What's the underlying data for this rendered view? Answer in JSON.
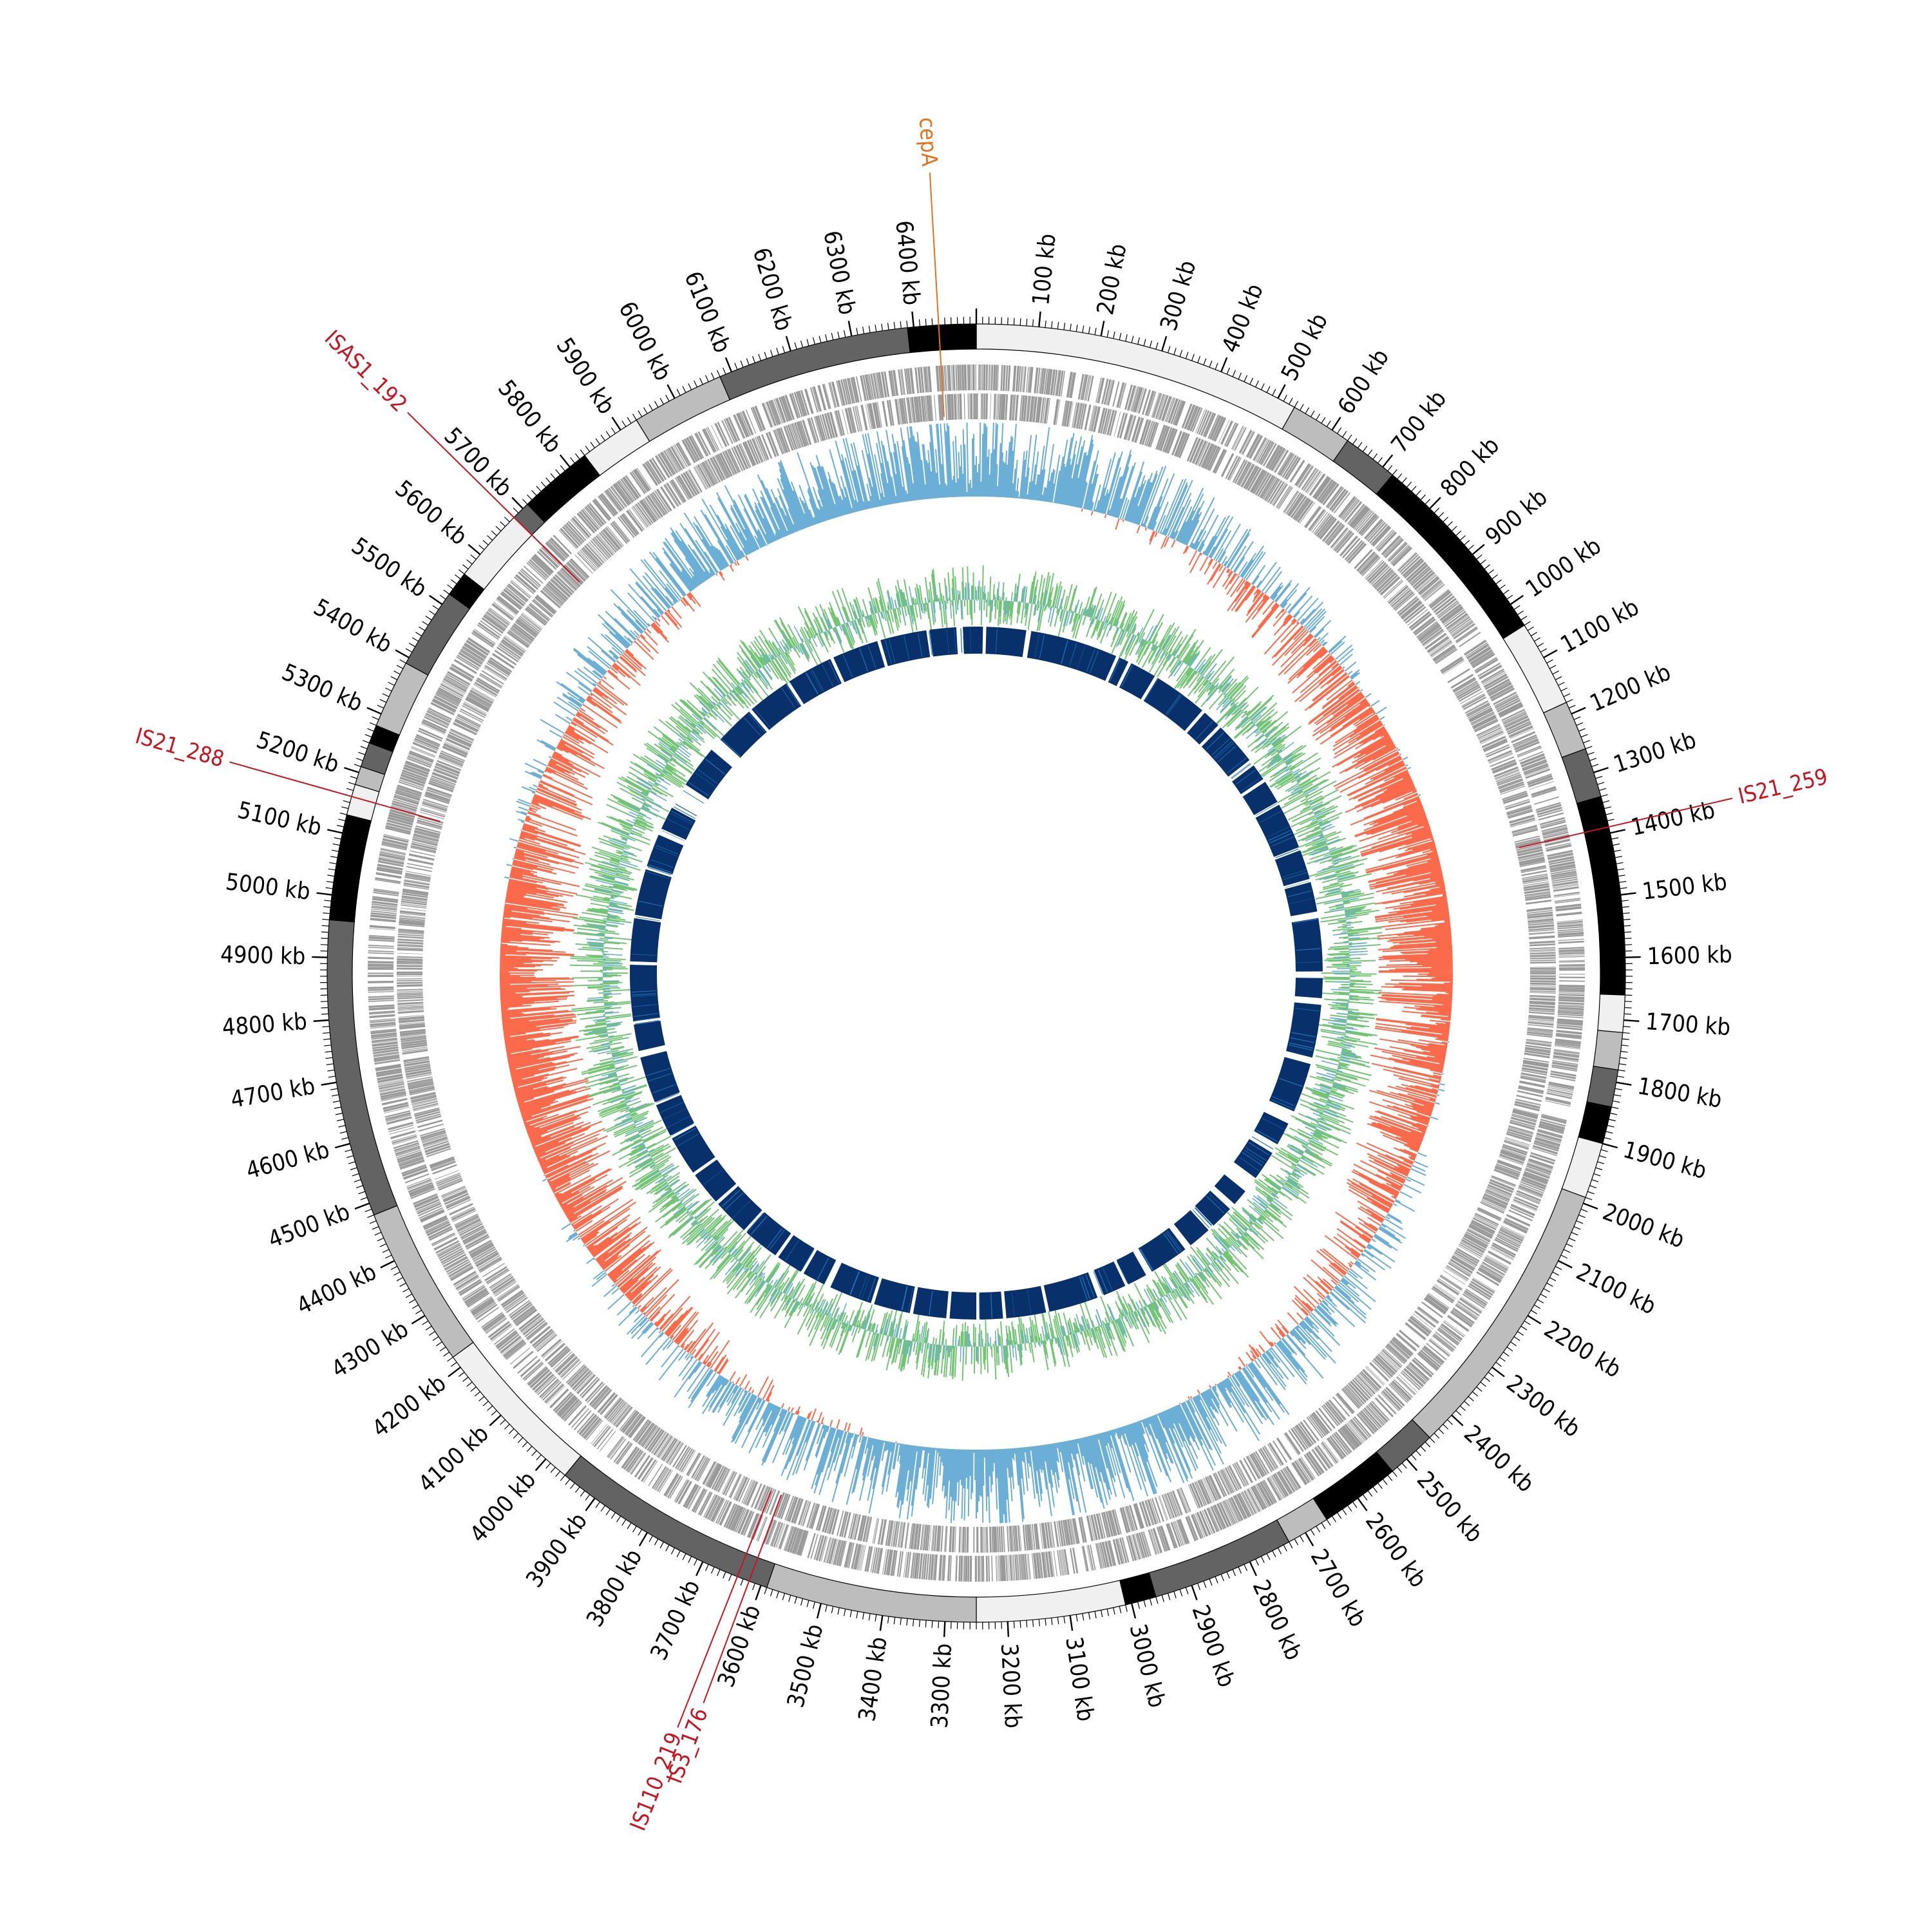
{
  "genome": {
    "length_kb": 6500,
    "tick_unit": "kb",
    "major_tick_every_kb": 100,
    "minor_tick_every_kb": 10
  },
  "tick_labels": [
    "100 kb",
    "200 kb",
    "300 kb",
    "400 kb",
    "500 kb",
    "600 kb",
    "700 kb",
    "800 kb",
    "900 kb",
    "1000 kb",
    "1100 kb",
    "1200 kb",
    "1300 kb",
    "1400 kb",
    "1500 kb",
    "1600 kb",
    "1700 kb",
    "1800 kb",
    "1900 kb",
    "2000 kb",
    "2100 kb",
    "2200 kb",
    "2300 kb",
    "2400 kb",
    "2500 kb",
    "2600 kb",
    "2700 kb",
    "2800 kb",
    "2900 kb",
    "3000 kb",
    "3100 kb",
    "3200 kb",
    "3300 kb",
    "3400 kb",
    "3500 kb",
    "3600 kb",
    "3700 kb",
    "3800 kb",
    "3900 kb",
    "4000 kb",
    "4100 kb",
    "4200 kb",
    "4300 kb",
    "4400 kb",
    "4500 kb",
    "4600 kb",
    "4700 kb",
    "4800 kb",
    "4900 kb",
    "5000 kb",
    "5100 kb",
    "5200 kb",
    "5300 kb",
    "5400 kb",
    "5500 kb",
    "5600 kb",
    "5700 kb",
    "5800 kb",
    "5900 kb",
    "6000 kb",
    "6100 kb",
    "6200 kb",
    "6300 kb",
    "6400 kb"
  ],
  "contig_blocks_kb": [
    {
      "start": 0,
      "end": 530,
      "shade": "#f0f0f0"
    },
    {
      "start": 530,
      "end": 630,
      "shade": "#bdbdbd"
    },
    {
      "start": 630,
      "end": 720,
      "shade": "#636363"
    },
    {
      "start": 720,
      "end": 1040,
      "shade": "#000000"
    },
    {
      "start": 1040,
      "end": 1180,
      "shade": "#f0f0f0"
    },
    {
      "start": 1180,
      "end": 1260,
      "shade": "#bdbdbd"
    },
    {
      "start": 1260,
      "end": 1340,
      "shade": "#636363"
    },
    {
      "start": 1340,
      "end": 1660,
      "shade": "#000000"
    },
    {
      "start": 1660,
      "end": 1720,
      "shade": "#f0f0f0"
    },
    {
      "start": 1720,
      "end": 1780,
      "shade": "#bdbdbd"
    },
    {
      "start": 1780,
      "end": 1840,
      "shade": "#636363"
    },
    {
      "start": 1840,
      "end": 1900,
      "shade": "#000000"
    },
    {
      "start": 1900,
      "end": 1990,
      "shade": "#f0f0f0"
    },
    {
      "start": 1990,
      "end": 2450,
      "shade": "#bdbdbd"
    },
    {
      "start": 2450,
      "end": 2530,
      "shade": "#636363"
    },
    {
      "start": 2530,
      "end": 2660,
      "shade": "#000000"
    },
    {
      "start": 2660,
      "end": 2730,
      "shade": "#bdbdbd"
    },
    {
      "start": 2730,
      "end": 2960,
      "shade": "#636363"
    },
    {
      "start": 2960,
      "end": 3010,
      "shade": "#000000"
    },
    {
      "start": 3010,
      "end": 3250,
      "shade": "#f0f0f0"
    },
    {
      "start": 3250,
      "end": 3590,
      "shade": "#bdbdbd"
    },
    {
      "start": 3590,
      "end": 3960,
      "shade": "#636363"
    },
    {
      "start": 3960,
      "end": 4220,
      "shade": "#f0f0f0"
    },
    {
      "start": 4220,
      "end": 4480,
      "shade": "#bdbdbd"
    },
    {
      "start": 4480,
      "end": 4960,
      "shade": "#636363"
    },
    {
      "start": 4960,
      "end": 5130,
      "shade": "#000000"
    },
    {
      "start": 5130,
      "end": 5180,
      "shade": "#f0f0f0"
    },
    {
      "start": 5180,
      "end": 5210,
      "shade": "#bdbdbd"
    },
    {
      "start": 5210,
      "end": 5250,
      "shade": "#636363"
    },
    {
      "start": 5250,
      "end": 5280,
      "shade": "#000000"
    },
    {
      "start": 5280,
      "end": 5390,
      "shade": "#bdbdbd"
    },
    {
      "start": 5390,
      "end": 5520,
      "shade": "#636363"
    },
    {
      "start": 5520,
      "end": 5560,
      "shade": "#000000"
    },
    {
      "start": 5560,
      "end": 5680,
      "shade": "#f0f0f0"
    },
    {
      "start": 5680,
      "end": 5710,
      "shade": "#636363"
    },
    {
      "start": 5710,
      "end": 5830,
      "shade": "#000000"
    },
    {
      "start": 5830,
      "end": 5930,
      "shade": "#f0f0f0"
    },
    {
      "start": 5930,
      "end": 6080,
      "shade": "#bdbdbd"
    },
    {
      "start": 6080,
      "end": 6390,
      "shade": "#636363"
    },
    {
      "start": 6390,
      "end": 6500,
      "shade": "#000000"
    }
  ],
  "insertion_sequences": [
    {
      "label": "cepA",
      "position_kb": 6440,
      "color": "#e6711b"
    },
    {
      "label": "ISAS1_192",
      "position_kb": 5680,
      "color": "#c8141e"
    },
    {
      "label": "IS21_288",
      "position_kb": 5160,
      "color": "#c8141e"
    },
    {
      "label": "IS21_259",
      "position_kb": 1390,
      "color": "#c8141e"
    },
    {
      "label": "IS110_219",
      "position_kb": 3640,
      "color": "#c8141e"
    },
    {
      "label": "IS3_176",
      "position_kb": 3620,
      "color": "#c8141e"
    }
  ],
  "homology_gaps_kb": [
    [
      20,
      30
    ],
    [
      150,
      165
    ],
    [
      430,
      440
    ],
    [
      470,
      480
    ],
    [
      560,
      570
    ],
    [
      735,
      745
    ],
    [
      800,
      810
    ],
    [
      940,
      960
    ],
    [
      1010,
      1020
    ],
    [
      1090,
      1100
    ],
    [
      1240,
      1250
    ],
    [
      1340,
      1350
    ],
    [
      1440,
      1460
    ],
    [
      1620,
      1640
    ],
    [
      1700,
      1720
    ],
    [
      1880,
      1900
    ],
    [
      2050,
      2090
    ],
    [
      2160,
      2190
    ],
    [
      2280,
      2330
    ],
    [
      2380,
      2400
    ],
    [
      2470,
      2490
    ],
    [
      2560,
      2580
    ],
    [
      2700,
      2720
    ],
    [
      2780,
      2790
    ],
    [
      2860,
      2880
    ],
    [
      3030,
      3040
    ],
    [
      3160,
      3170
    ],
    [
      3240,
      3250
    ],
    [
      3330,
      3340
    ],
    [
      3440,
      3450
    ],
    [
      3560,
      3570
    ],
    [
      3700,
      3720
    ],
    [
      3790,
      3800
    ],
    [
      3880,
      3890
    ],
    [
      4000,
      4010
    ],
    [
      4120,
      4130
    ],
    [
      4230,
      4240
    ],
    [
      4360,
      4370
    ],
    [
      4470,
      4480
    ],
    [
      4620,
      4640
    ],
    [
      4720,
      4730
    ],
    [
      4900,
      4910
    ],
    [
      5040,
      5050
    ],
    [
      5190,
      5200
    ],
    [
      5300,
      5320
    ],
    [
      5390,
      5470
    ],
    [
      5600,
      5640
    ],
    [
      5760,
      5770
    ],
    [
      5900,
      5910
    ],
    [
      6050,
      6060
    ],
    [
      6200,
      6210
    ],
    [
      6350,
      6360
    ],
    [
      6440,
      6460
    ]
  ],
  "colors": {
    "outline": "#000000",
    "genes_track": "#999999",
    "gc_skew_positive": "#6baed6",
    "gc_skew_negative": "#fb6a4a",
    "gc_content": "#74c476",
    "homology_blocks": "#08306b",
    "homology_highlight": "#2171b5"
  }
}
